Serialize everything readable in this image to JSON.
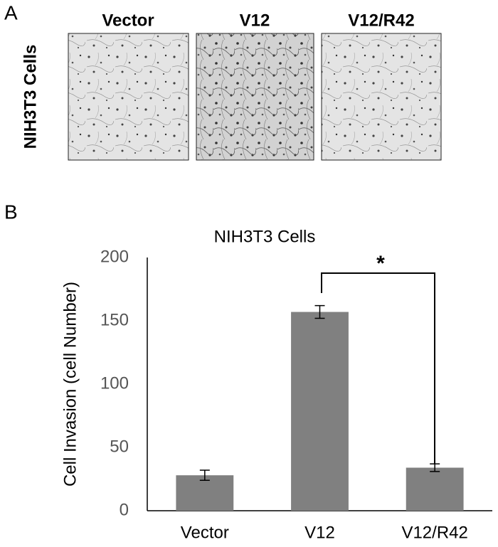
{
  "panel_a": {
    "label": "A",
    "row_label": "NIH3T3 Cells",
    "columns": [
      "Vector",
      "V12",
      "V12/R42"
    ]
  },
  "panel_b_label": "B",
  "chart_data": {
    "type": "bar",
    "title": "NIH3T3 Cells",
    "y_label": "Cell Invasion (cell Number)",
    "categories": [
      "Vector",
      "V12",
      "V12/R42"
    ],
    "values": [
      28,
      157,
      34
    ],
    "errors": [
      4,
      5,
      3
    ],
    "color": "#808080",
    "ylim": [
      0,
      200
    ],
    "yticks": [
      0,
      50,
      100,
      150,
      200
    ],
    "grid": false,
    "annotation": "*"
  }
}
